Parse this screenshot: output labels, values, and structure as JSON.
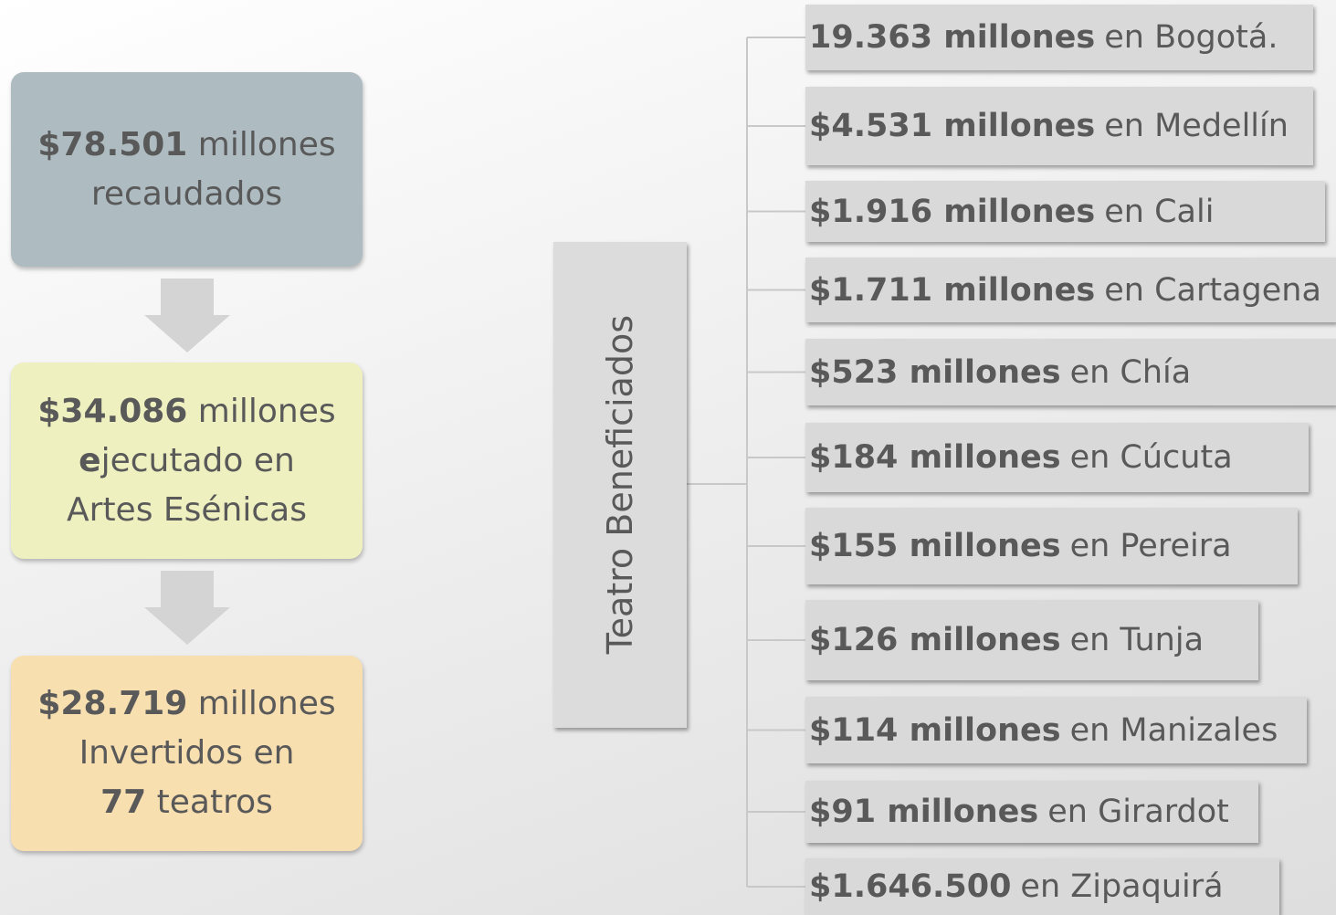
{
  "flow": [
    {
      "lines": [
        [
          {
            "text": "$78.501",
            "bold": true
          },
          {
            "text": " millones",
            "bold": false
          }
        ],
        [
          {
            "text": "recaudados",
            "bold": false
          }
        ]
      ]
    },
    {
      "lines": [
        [
          {
            "text": "$34.086",
            "bold": true
          },
          {
            "text": " millones",
            "bold": false
          }
        ],
        [
          {
            "text": "e",
            "bold": true
          },
          {
            "text": "jecutado en",
            "bold": false
          }
        ],
        [
          {
            "text": "Artes Esénicas",
            "bold": false
          }
        ]
      ]
    },
    {
      "lines": [
        [
          {
            "text": "$28.719",
            "bold": true
          },
          {
            "text": " millones",
            "bold": false
          }
        ],
        [
          {
            "text": "Invertidos en",
            "bold": false
          }
        ],
        [
          {
            "text": "77",
            "bold": true
          },
          {
            "text": " teatros",
            "bold": false
          }
        ]
      ]
    }
  ],
  "center": {
    "label": "Teatro Beneficiados"
  },
  "items": [
    {
      "amount": "19.363 millones",
      "place": "en Bogotá."
    },
    {
      "amount": "$4.531 millones",
      "place": "en Medellín"
    },
    {
      "amount": "$1.916 millones",
      "place": "en Cali"
    },
    {
      "amount": "$1.711 millones",
      "place": "en Cartagena"
    },
    {
      "amount": "$523 millones",
      "place": "en Chía"
    },
    {
      "amount": "$184 millones",
      "place": "en Cúcuta"
    },
    {
      "amount": "$155 millones",
      "place": "en Pereira"
    },
    {
      "amount": "$126 millones",
      "place": "en Tunja"
    },
    {
      "amount": "$114 millones",
      "place": "en Manizales"
    },
    {
      "amount": "$91 millones",
      "place": "en Girardot"
    },
    {
      "amount": "$1.646.500",
      "place": "en Zipaquirá"
    }
  ]
}
